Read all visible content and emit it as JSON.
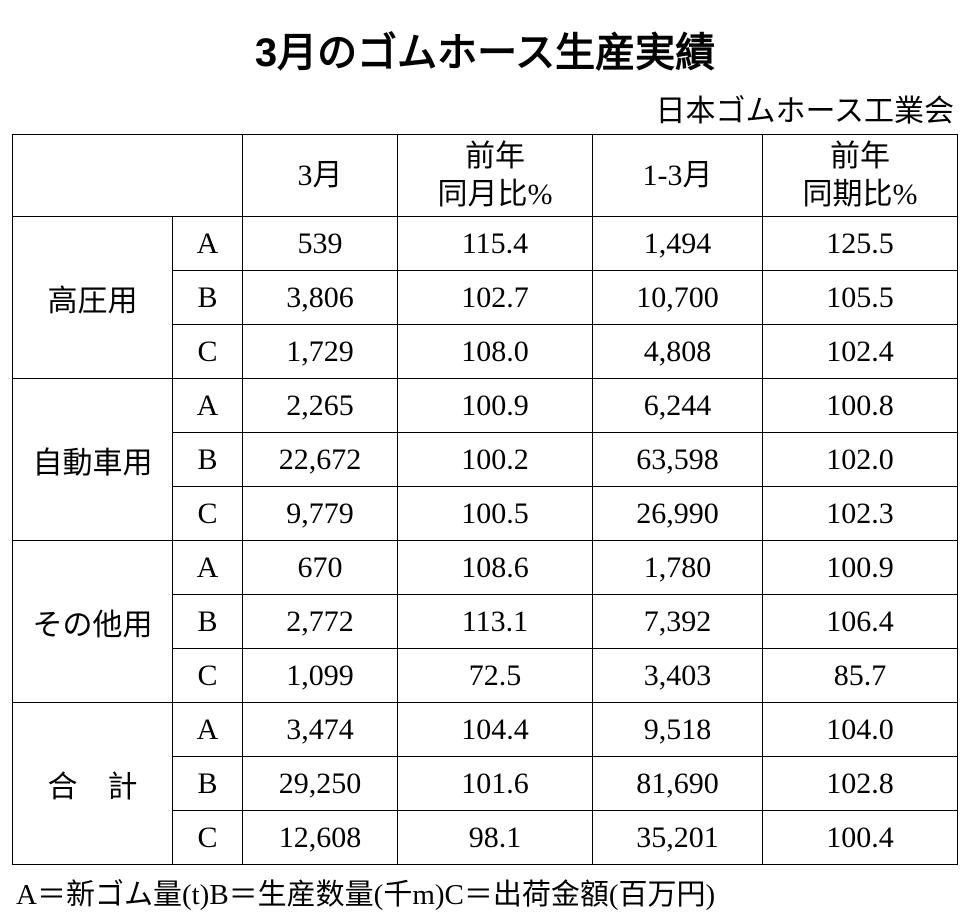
{
  "title": "3月のゴムホース生産実績",
  "source": "日本ゴムホース工業会",
  "columns": {
    "blank": "",
    "month": "3月",
    "prev_month": "前年\n同月比%",
    "quarter": "1-3月",
    "prev_quarter": "前年\n同期比%"
  },
  "categories": [
    {
      "name": "高圧用",
      "spaced": false,
      "rows": [
        {
          "sub": "A",
          "m": "539",
          "pm": "115.4",
          "q": "1,494",
          "pq": "125.5"
        },
        {
          "sub": "B",
          "m": "3,806",
          "pm": "102.7",
          "q": "10,700",
          "pq": "105.5"
        },
        {
          "sub": "C",
          "m": "1,729",
          "pm": "108.0",
          "q": "4,808",
          "pq": "102.4"
        }
      ]
    },
    {
      "name": "自動車用",
      "spaced": false,
      "rows": [
        {
          "sub": "A",
          "m": "2,265",
          "pm": "100.9",
          "q": "6,244",
          "pq": "100.8"
        },
        {
          "sub": "B",
          "m": "22,672",
          "pm": "100.2",
          "q": "63,598",
          "pq": "102.0"
        },
        {
          "sub": "C",
          "m": "9,779",
          "pm": "100.5",
          "q": "26,990",
          "pq": "102.3"
        }
      ]
    },
    {
      "name": "その他用",
      "spaced": false,
      "rows": [
        {
          "sub": "A",
          "m": "670",
          "pm": "108.6",
          "q": "1,780",
          "pq": "100.9"
        },
        {
          "sub": "B",
          "m": "2,772",
          "pm": "113.1",
          "q": "7,392",
          "pq": "106.4"
        },
        {
          "sub": "C",
          "m": "1,099",
          "pm": "72.5",
          "q": "3,403",
          "pq": "85.7"
        }
      ]
    },
    {
      "name": "合　計",
      "spaced": false,
      "rows": [
        {
          "sub": "A",
          "m": "3,474",
          "pm": "104.4",
          "q": "9,518",
          "pq": "104.0"
        },
        {
          "sub": "B",
          "m": "29,250",
          "pm": "101.6",
          "q": "81,690",
          "pq": "102.8"
        },
        {
          "sub": "C",
          "m": "12,608",
          "pm": "98.1",
          "q": "35,201",
          "pq": "100.4"
        }
      ]
    }
  ],
  "footnote": "A＝新ゴム量(t)B＝生産数量(千m)C＝出荷金額(百万円)"
}
